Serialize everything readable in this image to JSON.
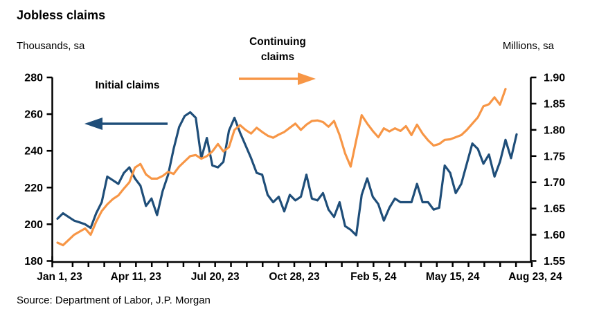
{
  "title": "Jobless claims",
  "source": "Source: Department of Labor, J.P. Morgan",
  "colors": {
    "initial_claims_line": "#1F4E79",
    "continuing_claims_line": "#F79646",
    "axis": "#000000",
    "background": "#FFFFFF"
  },
  "annotations": {
    "initial_label": "Initial claims",
    "continuing_label": "Continuing claims"
  },
  "chart_data": {
    "type": "line",
    "title": "Jobless claims",
    "grid": false,
    "legend": "inline text annotations with arrows pointing to each line",
    "x_tick_labels": [
      "Jan 1, 23",
      "Apr 11, 23",
      "Jul 20, 23",
      "Oct 28, 23",
      "Feb 5, 24",
      "May 15, 24",
      "Aug 23, 24"
    ],
    "x_description": "weekly observations from Jan 1 2023 to Aug 23 2024",
    "left_axis": {
      "label": "Thousands, sa",
      "min": 180,
      "max": 280,
      "ticks": [
        180,
        200,
        220,
        240,
        260,
        280
      ]
    },
    "right_axis": {
      "label": "Millions, sa",
      "min": 1.55,
      "max": 1.9,
      "ticks": [
        "1.55",
        "1.60",
        "1.65",
        "1.70",
        "1.75",
        "1.80",
        "1.85",
        "1.90"
      ]
    },
    "series": [
      {
        "name": "Initial claims",
        "axis": "left",
        "unit": "thousands, sa",
        "color": "#1F4E79",
        "values": [
          203,
          206,
          204,
          202,
          201,
          200,
          198,
          206,
          212,
          226,
          224,
          222,
          228,
          231,
          225,
          221,
          210,
          214,
          205,
          218,
          227,
          241,
          253,
          259,
          261,
          258,
          236,
          247,
          232,
          231,
          234,
          251,
          258,
          250,
          243,
          236,
          228,
          227,
          216,
          212,
          215,
          207,
          216,
          213,
          215,
          227,
          214,
          213,
          217,
          208,
          204,
          212,
          199,
          197,
          194,
          216,
          225,
          215,
          211,
          202,
          209,
          214,
          212,
          212,
          212,
          222,
          212,
          212,
          208,
          209,
          232,
          228,
          217,
          222,
          233,
          244,
          241,
          233,
          238,
          226,
          234,
          246,
          236,
          249
        ]
      },
      {
        "name": "Continuing claims",
        "axis": "right",
        "unit": "millions, sa",
        "color": "#F79646",
        "values": [
          1.585,
          1.58,
          1.59,
          1.6,
          1.606,
          1.612,
          1.6,
          1.625,
          1.645,
          1.658,
          1.668,
          1.675,
          1.688,
          1.7,
          1.728,
          1.735,
          1.715,
          1.707,
          1.707,
          1.712,
          1.72,
          1.716,
          1.73,
          1.74,
          1.75,
          1.752,
          1.745,
          1.75,
          1.759,
          1.773,
          1.759,
          1.767,
          1.8,
          1.809,
          1.8,
          1.793,
          1.804,
          1.796,
          1.789,
          1.785,
          1.791,
          1.796,
          1.804,
          1.812,
          1.8,
          1.81,
          1.817,
          1.818,
          1.815,
          1.806,
          1.817,
          1.79,
          1.755,
          1.73,
          1.78,
          1.828,
          1.812,
          1.798,
          1.786,
          1.803,
          1.797,
          1.803,
          1.798,
          1.807,
          1.79,
          1.81,
          1.793,
          1.78,
          1.77,
          1.773,
          1.781,
          1.782,
          1.786,
          1.79,
          1.8,
          1.812,
          1.824,
          1.845,
          1.849,
          1.862,
          1.848,
          1.878
        ]
      }
    ]
  }
}
